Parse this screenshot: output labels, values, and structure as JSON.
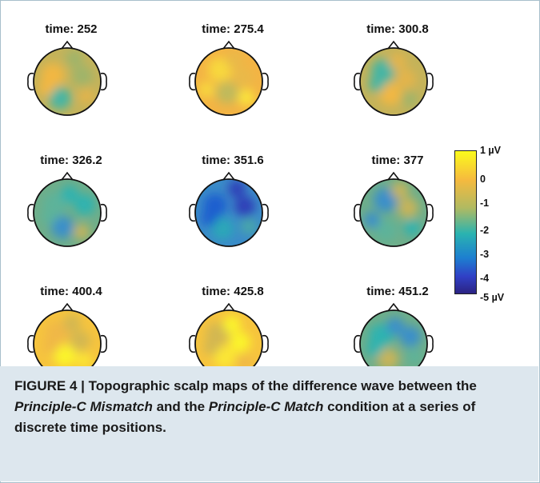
{
  "panels": [
    {
      "title": "time: 252",
      "tone": "mixed"
    },
    {
      "title": "time: 275.4",
      "tone": "warm"
    },
    {
      "title": "time: 300.8",
      "tone": "mixed"
    },
    {
      "title": "time: 326.2",
      "tone": "cool"
    },
    {
      "title": "time: 351.6",
      "tone": "cold"
    },
    {
      "title": "time: 377",
      "tone": "cool"
    },
    {
      "title": "time: 400.4",
      "tone": "hot"
    },
    {
      "title": "time: 425.8",
      "tone": "hot"
    },
    {
      "title": "time: 451.2",
      "tone": "cool"
    }
  ],
  "colorbar": {
    "ticks": [
      "1 µV",
      "0",
      "-1",
      "-2",
      "-3",
      "-4",
      "-5 µV"
    ],
    "range": [
      -5,
      1
    ],
    "colors": [
      "#fbfb1c",
      "#f6ba3e",
      "#b0ba62",
      "#2ab3b0",
      "#1d7fd0",
      "#3040c6",
      "#2b2382"
    ]
  },
  "caption": {
    "label": "FIGURE 4 | ",
    "part1": "Topographic scalp maps of the difference wave between the ",
    "term1": "Principle-C Mismatch",
    "part2": " and the ",
    "term2": "Principle-C Match",
    "part3": " condition at a series of discrete time positions."
  }
}
